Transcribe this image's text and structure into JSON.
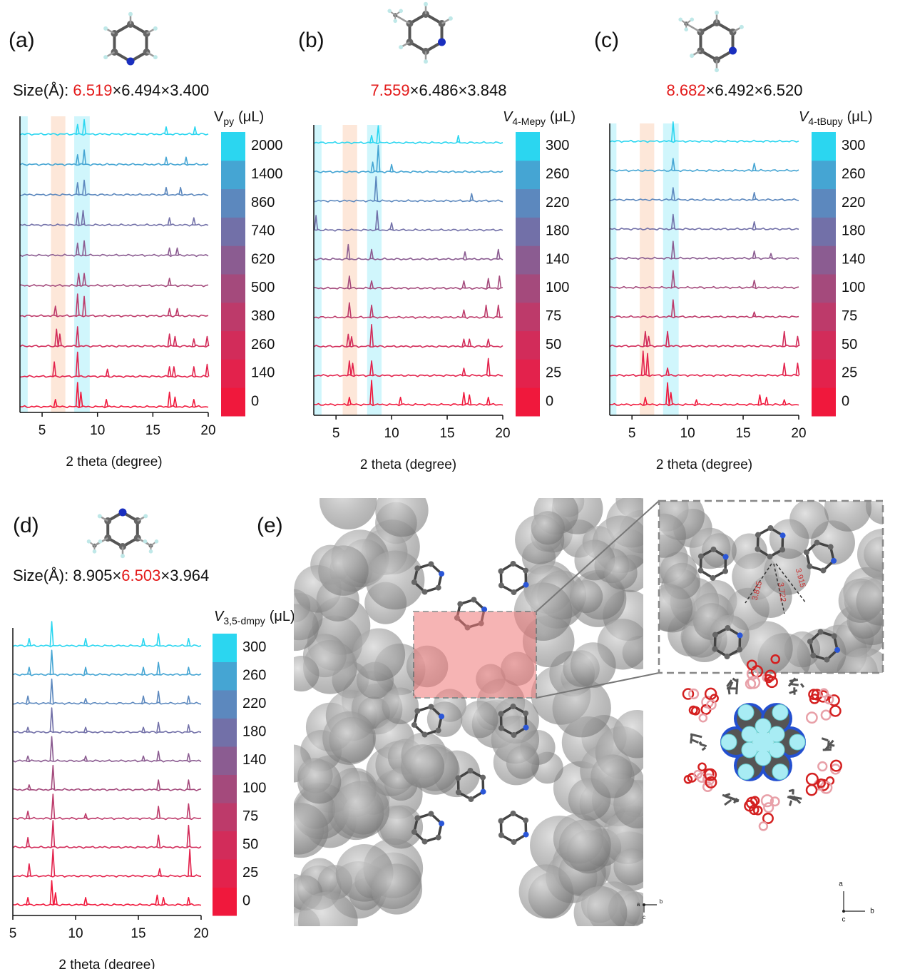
{
  "chart_data": [
    {
      "type": "stacked-line",
      "label": "(a)",
      "size_prefix": "Size(Å):",
      "size": [
        "6.519",
        "6.494",
        "3.400"
      ],
      "size_separator": "×",
      "size_highlight": 0,
      "xlabel": "2 theta (degree)",
      "xlim": [
        3,
        20
      ],
      "xticks": [
        5,
        10,
        15,
        20
      ],
      "legend_title": {
        "symbol": "V",
        "sub": "py",
        "unit": "(μL)",
        "italic": false
      },
      "bands": [
        {
          "from": 3,
          "to": 3.7,
          "color": "#c8f4fb"
        },
        {
          "from": 5.8,
          "to": 7.1,
          "color": "#fde3d2"
        },
        {
          "from": 7.9,
          "to": 9.3,
          "color": "#c8f4fb"
        }
      ],
      "series": [
        {
          "name": "0",
          "color": "#f0183c",
          "x": [
            6.2,
            8.2,
            8.5,
            10.8,
            16.5,
            17,
            18.7
          ],
          "values": [
            0.3,
            1.0,
            0.6,
            0.3,
            0.6,
            0.4,
            0.3
          ]
        },
        {
          "name": "140",
          "color": "#e3224c",
          "x": [
            6.1,
            8.2,
            10.9,
            16.5,
            16.9,
            18.7,
            19.9
          ],
          "values": [
            0.6,
            1.0,
            0.3,
            0.4,
            0.4,
            0.4,
            0.5
          ]
        },
        {
          "name": "260",
          "color": "#d22c5a",
          "x": [
            6.3,
            6.6,
            8.2,
            16.5,
            17,
            18.7,
            19.9
          ],
          "values": [
            0.7,
            0.5,
            0.8,
            0.5,
            0.4,
            0.3,
            0.4
          ]
        },
        {
          "name": "380",
          "color": "#bd3a6a",
          "x": [
            6.2,
            8.2,
            8.8,
            16.5,
            17.2
          ],
          "values": [
            0.4,
            0.9,
            0.8,
            0.3,
            0.3
          ]
        },
        {
          "name": "500",
          "color": "#a44a7c",
          "x": [
            8.3,
            8.8,
            16.5
          ],
          "values": [
            0.5,
            0.5,
            0.3
          ]
        },
        {
          "name": "620",
          "color": "#8b5c91",
          "x": [
            8.2,
            8.8,
            16.5,
            17.2
          ],
          "values": [
            0.5,
            0.6,
            0.3,
            0.3
          ]
        },
        {
          "name": "740",
          "color": "#7270a8",
          "x": [
            8.2,
            8.7,
            16.5,
            18.7
          ],
          "values": [
            0.5,
            0.6,
            0.3,
            0.3
          ]
        },
        {
          "name": "860",
          "color": "#5c88be",
          "x": [
            8.2,
            8.8,
            16.2,
            17.5
          ],
          "values": [
            0.5,
            0.6,
            0.3,
            0.3
          ]
        },
        {
          "name": "1400",
          "color": "#45a5d3",
          "x": [
            8.2,
            8.8,
            16.2,
            18
          ],
          "values": [
            0.4,
            0.6,
            0.3,
            0.3
          ]
        },
        {
          "name": "2000",
          "color": "#2bd6f0",
          "x": [
            8.2,
            8.8,
            16.2,
            18.8
          ],
          "values": [
            0.4,
            0.6,
            0.3,
            0.3
          ]
        }
      ]
    },
    {
      "type": "stacked-line",
      "label": "(b)",
      "size": [
        "7.559",
        "6.486",
        "3.848"
      ],
      "size_separator": "×",
      "size_highlight": 0,
      "xlabel": "2 theta (degree)",
      "xlim": [
        3,
        20
      ],
      "xticks": [
        5,
        10,
        15,
        20
      ],
      "legend_title": {
        "symbol": "V",
        "sub": "4-Mepy",
        "unit": "(μL)",
        "italic": true
      },
      "bands": [
        {
          "from": 3,
          "to": 3.7,
          "color": "#c8f4fb"
        },
        {
          "from": 5.6,
          "to": 6.9,
          "color": "#fde3d2"
        },
        {
          "from": 7.8,
          "to": 9.1,
          "color": "#c8f4fb"
        }
      ],
      "series": [
        {
          "name": "0",
          "color": "#f0183c",
          "x": [
            6.2,
            8.2,
            10.8,
            16.5,
            17,
            18.7
          ],
          "values": [
            0.3,
            1.0,
            0.3,
            0.5,
            0.4,
            0.3
          ]
        },
        {
          "name": "25",
          "color": "#e3224c",
          "x": [
            6.2,
            6.5,
            8.2,
            16.5,
            18.7
          ],
          "values": [
            0.6,
            0.5,
            0.6,
            0.3,
            0.7
          ]
        },
        {
          "name": "50",
          "color": "#d22c5a",
          "x": [
            6.1,
            6.4,
            8.2,
            16.5,
            17,
            18.7
          ],
          "values": [
            0.5,
            0.4,
            0.9,
            0.3,
            0.3,
            0.3
          ]
        },
        {
          "name": "75",
          "color": "#bd3a6a",
          "x": [
            6.2,
            8.2,
            16.5,
            18.5,
            19.6
          ],
          "values": [
            0.6,
            0.5,
            0.3,
            0.5,
            0.5
          ]
        },
        {
          "name": "100",
          "color": "#a44a7c",
          "x": [
            6.2,
            8.2,
            16.5,
            18.7,
            19.7
          ],
          "values": [
            0.5,
            0.3,
            0.3,
            0.4,
            0.5
          ]
        },
        {
          "name": "140",
          "color": "#8b5c91",
          "x": [
            6.1,
            8.2,
            16.6,
            19.6
          ],
          "values": [
            0.6,
            0.4,
            0.3,
            0.4
          ]
        },
        {
          "name": "180",
          "color": "#7270a8",
          "x": [
            3.2,
            8.7,
            10
          ],
          "values": [
            0.6,
            0.8,
            0.3
          ]
        },
        {
          "name": "220",
          "color": "#5c88be",
          "x": [
            8.6,
            17.2
          ],
          "values": [
            1.0,
            0.3
          ]
        },
        {
          "name": "260",
          "color": "#45a5d3",
          "x": [
            8.3,
            8.8,
            10
          ],
          "values": [
            0.4,
            1.1,
            0.3
          ]
        },
        {
          "name": "300",
          "color": "#2bd6f0",
          "x": [
            8.2,
            8.8,
            16
          ],
          "values": [
            0.3,
            0.7,
            0.3
          ]
        }
      ]
    },
    {
      "type": "stacked-line",
      "label": "(c)",
      "size": [
        "8.682",
        "6.492",
        "6.520"
      ],
      "size_separator": "×",
      "size_highlight": 0,
      "xlabel": "2 theta (degree)",
      "xlim": [
        3,
        20
      ],
      "xticks": [
        5,
        10,
        15,
        20
      ],
      "legend_title": {
        "symbol": "V",
        "sub": "4-tBupy",
        "unit": "(μL)",
        "italic": true
      },
      "bands": [
        {
          "from": 3,
          "to": 3.6,
          "color": "#c8f4fb"
        },
        {
          "from": 5.7,
          "to": 7.0,
          "color": "#fde3d2"
        },
        {
          "from": 7.8,
          "to": 9.2,
          "color": "#c8f4fb"
        }
      ],
      "series": [
        {
          "name": "0",
          "color": "#f0183c",
          "x": [
            6.2,
            8.2,
            8.5,
            10.8,
            16.5,
            17.1,
            18.7
          ],
          "values": [
            0.3,
            0.9,
            0.5,
            0.2,
            0.4,
            0.3,
            0.2
          ]
        },
        {
          "name": "25",
          "color": "#e3224c",
          "x": [
            6.0,
            6.4,
            8.2,
            18.7,
            19.9
          ],
          "values": [
            1.0,
            0.9,
            0.3,
            0.5,
            0.5
          ]
        },
        {
          "name": "50",
          "color": "#d22c5a",
          "x": [
            6.2,
            6.5,
            8.2,
            18.7,
            19.9
          ],
          "values": [
            0.6,
            0.4,
            0.6,
            0.6,
            0.4
          ]
        },
        {
          "name": "75",
          "color": "#bd3a6a",
          "x": [
            8.7,
            16
          ],
          "values": [
            0.7,
            0.2
          ]
        },
        {
          "name": "100",
          "color": "#a44a7c",
          "x": [
            8.7,
            16
          ],
          "values": [
            0.7,
            0.3
          ]
        },
        {
          "name": "140",
          "color": "#8b5c91",
          "x": [
            8.7,
            16,
            17.5
          ],
          "values": [
            0.7,
            0.3,
            0.2
          ]
        },
        {
          "name": "180",
          "color": "#7270a8",
          "x": [
            8.7,
            16
          ],
          "values": [
            0.6,
            0.3
          ]
        },
        {
          "name": "220",
          "color": "#5c88be",
          "x": [
            8.7,
            16
          ],
          "values": [
            0.5,
            0.3
          ]
        },
        {
          "name": "260",
          "color": "#45a5d3",
          "x": [
            8.7,
            16
          ],
          "values": [
            0.5,
            0.3
          ]
        },
        {
          "name": "300",
          "color": "#2bd6f0",
          "x": [
            8.7
          ],
          "values": [
            0.8
          ]
        }
      ]
    },
    {
      "type": "stacked-line",
      "label": "(d)",
      "size_prefix": "Size(Å):",
      "size": [
        "8.905",
        "6.503",
        "3.964"
      ],
      "size_separator": "×",
      "size_highlight": 1,
      "xlabel": "2 theta (degree)",
      "xlim": [
        5,
        20
      ],
      "xticks": [
        5,
        10,
        15,
        20
      ],
      "legend_title": {
        "symbol": "V",
        "sub": "3,5-dmpy",
        "unit": "(μL)",
        "italic": true
      },
      "bands": [],
      "series": [
        {
          "name": "0",
          "color": "#f0183c",
          "x": [
            6.2,
            8.1,
            8.4,
            10.8,
            16.5,
            17,
            19
          ],
          "values": [
            0.3,
            1.0,
            0.5,
            0.3,
            0.4,
            0.3,
            0.3
          ]
        },
        {
          "name": "25",
          "color": "#e3224c",
          "x": [
            6.3,
            8.2,
            16.7,
            19.1
          ],
          "values": [
            0.5,
            1.1,
            0.3,
            1.1
          ]
        },
        {
          "name": "50",
          "color": "#d22c5a",
          "x": [
            6.2,
            8.2,
            16.6,
            19
          ],
          "values": [
            0.4,
            1.1,
            0.5,
            0.9
          ]
        },
        {
          "name": "75",
          "color": "#bd3a6a",
          "x": [
            6.2,
            8.2,
            10.8,
            16.6,
            19
          ],
          "values": [
            0.3,
            1.0,
            0.2,
            0.5,
            0.6
          ]
        },
        {
          "name": "100",
          "color": "#a44a7c",
          "x": [
            6.3,
            8.2,
            16.6,
            19
          ],
          "values": [
            0.2,
            1.0,
            0.4,
            0.4
          ]
        },
        {
          "name": "140",
          "color": "#8b5c91",
          "x": [
            6.2,
            8.1,
            10.8,
            15.4,
            16.6,
            19
          ],
          "values": [
            0.2,
            1.0,
            0.2,
            0.2,
            0.4,
            0.3
          ]
        },
        {
          "name": "180",
          "color": "#7270a8",
          "x": [
            6.2,
            8.1,
            10.8,
            15.4,
            16.6,
            19
          ],
          "values": [
            0.2,
            1.0,
            0.2,
            0.2,
            0.4,
            0.3
          ]
        },
        {
          "name": "220",
          "color": "#5c88be",
          "x": [
            6.2,
            8.1,
            10.8,
            15.4,
            16.6,
            19
          ],
          "values": [
            0.3,
            1.0,
            0.2,
            0.3,
            0.5,
            0.3
          ]
        },
        {
          "name": "260",
          "color": "#45a5d3",
          "x": [
            6.3,
            8.1,
            10.8,
            15.4,
            16.6,
            19
          ],
          "values": [
            0.3,
            1.0,
            0.3,
            0.3,
            0.5,
            0.3
          ]
        },
        {
          "name": "300",
          "color": "#2bd6f0",
          "x": [
            6.3,
            8.1,
            10.8,
            15.4,
            16.6,
            19
          ],
          "values": [
            0.3,
            1.0,
            0.3,
            0.3,
            0.5,
            0.3
          ]
        }
      ]
    }
  ],
  "panel_e": {
    "label": "(e)",
    "distances": [
      "3.815",
      "3.722",
      "3.915"
    ],
    "axes_left": [
      "a",
      "b",
      "c"
    ],
    "axes_right": [
      "a",
      "b",
      "c"
    ]
  }
}
